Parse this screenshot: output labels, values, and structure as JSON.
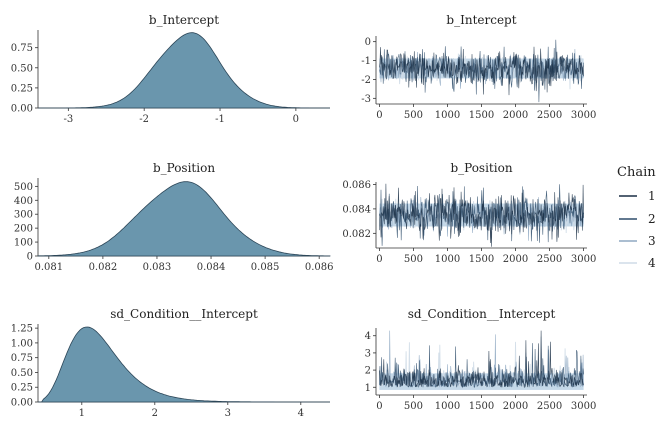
{
  "legend": {
    "title": "Chain",
    "placement": "right",
    "entries": [
      {
        "label": "1",
        "color": "#1a2f45"
      },
      {
        "label": "2",
        "color": "#2f4d6b"
      },
      {
        "label": "3",
        "color": "#8fa9c2"
      },
      {
        "label": "4",
        "color": "#cfdbe7"
      }
    ]
  },
  "colors": {
    "density_fill": "#6a96ad",
    "density_line": "#2c4658",
    "trace_band": "#c4d8e8",
    "trace_dark": "#1a2f45"
  },
  "chart_data": [
    {
      "type": "area",
      "title": "b_Intercept",
      "x_ticks": [
        -3,
        -2,
        -1,
        0
      ],
      "y_ticks": [
        "0.00",
        "0.25",
        "0.50",
        "0.75"
      ],
      "xlim": [
        -3.4,
        0.45
      ],
      "ylim": [
        0,
        0.97
      ],
      "density": {
        "shape": "normal",
        "mean": -1.42,
        "sd": 0.42,
        "peak": 0.93
      }
    },
    {
      "type": "line",
      "title": "b_Intercept",
      "x_ticks": [
        0,
        500,
        1000,
        1500,
        2000,
        2500,
        3000
      ],
      "y_ticks": [
        "0",
        "-1",
        "-2",
        "-3"
      ],
      "xlim": [
        -50,
        3050
      ],
      "ylim": [
        -3.3,
        0.3
      ],
      "trace": {
        "iterations": 3000,
        "center": -1.42,
        "spread": 0.42,
        "min": -3.2,
        "max": 0.2
      }
    },
    {
      "type": "area",
      "title": "b_Position",
      "x_ticks": [
        "0.081",
        "0.082",
        "0.083",
        "0.084",
        "0.085",
        "0.086"
      ],
      "y_ticks": [
        "0",
        "100",
        "200",
        "300",
        "400",
        "500"
      ],
      "xlim": [
        0.0808,
        0.0862
      ],
      "ylim": [
        0,
        560
      ],
      "density": {
        "shape": "normal",
        "mean": 0.08345,
        "sd": 0.00075,
        "peak": 530
      }
    },
    {
      "type": "line",
      "title": "b_Position",
      "x_ticks": [
        0,
        500,
        1000,
        1500,
        2000,
        2500,
        3000
      ],
      "y_ticks": [
        "0.082",
        "0.084",
        "0.086"
      ],
      "xlim": [
        -50,
        3050
      ],
      "ylim": [
        0.0808,
        0.0862
      ],
      "trace": {
        "iterations": 3000,
        "center": 0.0835,
        "spread": 0.00075,
        "min": 0.0809,
        "max": 0.0861
      }
    },
    {
      "type": "area",
      "title": "sd_Condition__Intercept",
      "x_ticks": [
        1,
        2,
        3,
        4
      ],
      "y_ticks": [
        "0.00",
        "0.25",
        "0.50",
        "0.75",
        "1.00",
        "1.25"
      ],
      "xlim": [
        0.4,
        4.4
      ],
      "ylim": [
        0,
        1.32
      ],
      "density": {
        "shape": "lognormal",
        "mode": 1.07,
        "sd": 0.3,
        "peak": 1.27
      }
    },
    {
      "type": "line",
      "title": "sd_Condition__Intercept",
      "x_ticks": [
        0,
        500,
        1000,
        1500,
        2000,
        2500,
        3000
      ],
      "y_ticks": [
        "1",
        "2",
        "3",
        "4"
      ],
      "xlim": [
        -50,
        3050
      ],
      "ylim": [
        0.55,
        4.45
      ],
      "trace": {
        "iterations": 3000,
        "center": 1.25,
        "spread": 0.45,
        "min": 0.6,
        "max": 4.3,
        "skew": true
      }
    }
  ]
}
